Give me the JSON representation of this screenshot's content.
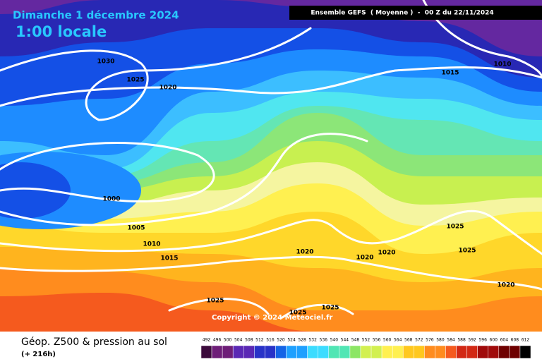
{
  "header": {
    "title": "Dimanche 1 décembre 2024",
    "time": "1:00 locale",
    "model": "Ensemble GEFS  ( Moyenne )  -  00 Z du 22/11/2024"
  },
  "map": {
    "isobar_labels": [
      1030,
      1025,
      1020,
      1015,
      1010,
      1000,
      1005,
      1010,
      1015,
      1020,
      1020,
      1020,
      1025,
      1025,
      1020,
      1025,
      1025,
      1025
    ],
    "copyright": "Copyright © 2024 Meteociel.fr"
  },
  "footer": {
    "title": "Géop. Z500 & pression au sol",
    "lead": "(+ 216h)",
    "scale": [
      492,
      496,
      500,
      504,
      508,
      512,
      516,
      520,
      524,
      528,
      532,
      536,
      540,
      544,
      548,
      552,
      556,
      560,
      564,
      568,
      572,
      576,
      580,
      584,
      588,
      592,
      596,
      600,
      604,
      608,
      612
    ]
  }
}
